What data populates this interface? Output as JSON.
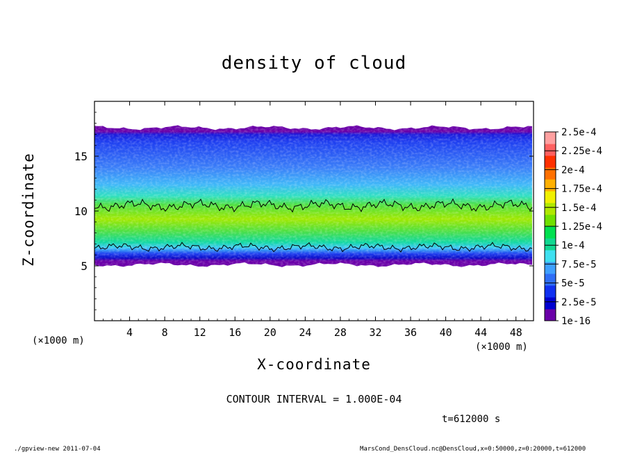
{
  "figure": {
    "title": "density of cloud",
    "contour_note": "CONTOUR INTERVAL = 1.000E-04",
    "time_note": "t=612000 s",
    "footer_left": "./gpview-new  2011-07-04",
    "footer_right": "MarsCond_DensCloud.nc@DensCloud,x=0:50000,z=0:20000,t=612000"
  },
  "chart_data": {
    "type": "heatmap",
    "title": "density of cloud",
    "xlabel": "X-coordinate",
    "ylabel": "Z-coordinate",
    "x_unit": "(×1000 m)",
    "xlim": [
      0,
      50
    ],
    "ylim": [
      0,
      20
    ],
    "x_ticks": [
      4,
      8,
      12,
      16,
      20,
      24,
      28,
      32,
      36,
      40,
      44,
      48
    ],
    "y_ticks": [
      5,
      10,
      15
    ],
    "colorbar_labels": [
      "1e-16",
      "2.5e-5",
      "5e-5",
      "7.5e-5",
      "1e-4",
      "1.25e-4",
      "1.5e-4",
      "1.75e-4",
      "2e-4",
      "2.25e-4",
      "2.5e-4"
    ],
    "colorbar_levels": [
      1e-16,
      2.5e-05,
      5e-05,
      7.5e-05,
      0.0001,
      0.000125,
      0.00015,
      0.000175,
      0.0002,
      0.000225,
      0.00025
    ],
    "colorbar_colors": [
      "#6a00a8",
      "#0000d0",
      "#1030f0",
      "#2f6ef6",
      "#3fa0ff",
      "#3fe0f0",
      "#10d890",
      "#00e050",
      "#70e000",
      "#b0e800",
      "#f0f000",
      "#ffb000",
      "#ff7000",
      "#ff3000",
      "#ff6060",
      "#ffa0a0"
    ],
    "contour_interval": 0.0001,
    "contour_levels": [
      0.0001
    ],
    "time": "t=612000 s",
    "cloud_layer": {
      "bottom_z": [
        4.8,
        5.4
      ],
      "top_z": [
        17.3,
        17.9
      ],
      "high_density_band_z": [
        6.7,
        10.5
      ],
      "peak_z": 8.5
    }
  }
}
